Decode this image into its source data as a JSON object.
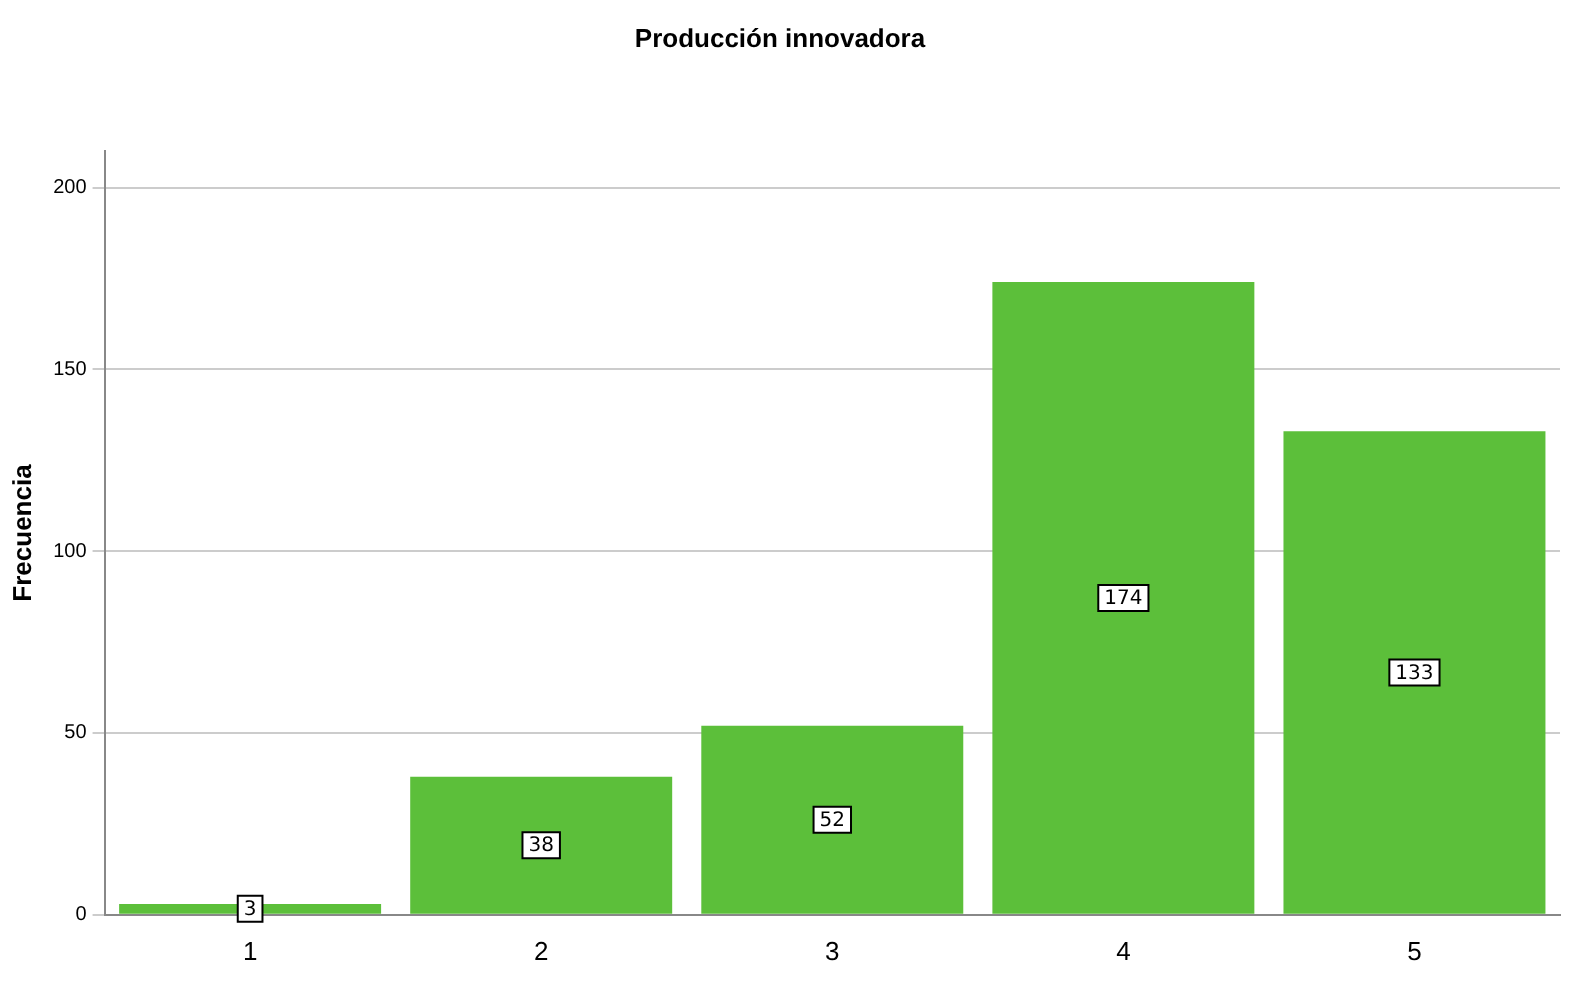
{
  "chart_data": {
    "type": "bar",
    "title": "Producción innovadora",
    "ylabel": "Frecuencia",
    "categories": [
      "1",
      "2",
      "3",
      "4",
      "5"
    ],
    "values": [
      3,
      38,
      52,
      174,
      133
    ],
    "color": "#5cbf3a",
    "ylim": [
      0,
      210
    ],
    "yticks": [
      0,
      50,
      100,
      150,
      200
    ],
    "grid": "y",
    "legend": false,
    "data_labels": true
  }
}
